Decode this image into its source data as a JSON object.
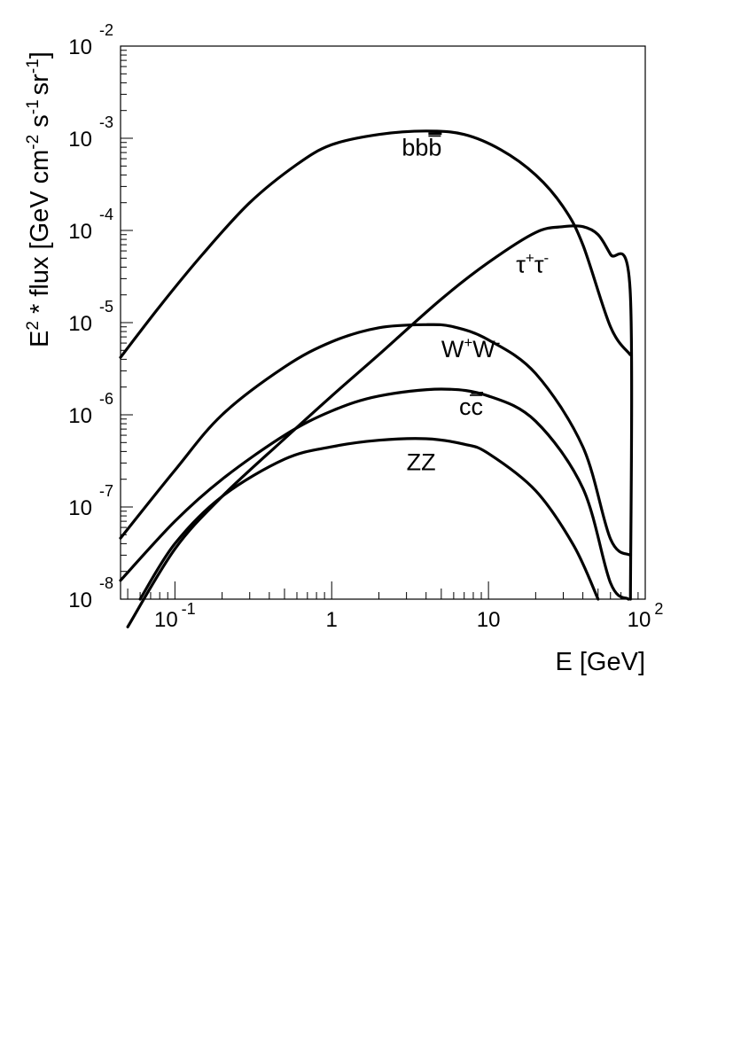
{
  "chart_data": {
    "type": "line",
    "xlabel": "E [GeV]",
    "ylabel_parts": {
      "a": "E",
      "a_sup": "2",
      "b": " * flux [GeV cm",
      "b_sup": "-2",
      "c": " s",
      "c_sup": "-1",
      "d": "sr",
      "d_sup": "-1",
      "e": "]"
    },
    "x_scale": "log",
    "y_scale": "log",
    "xlim": [
      0.045,
      100
    ],
    "ylim": [
      1e-08,
      0.01
    ],
    "x_ticks": [
      {
        "value": 0.1,
        "base": "10",
        "exp": "-1"
      },
      {
        "value": 1,
        "base": "1",
        "exp": ""
      },
      {
        "value": 10,
        "base": "10",
        "exp": ""
      },
      {
        "value": 100,
        "base": "10",
        "exp": "2"
      }
    ],
    "y_ticks": [
      {
        "value": 0.01,
        "base": "10",
        "exp": "-2"
      },
      {
        "value": 0.001,
        "base": "10",
        "exp": "-3"
      },
      {
        "value": 0.0001,
        "base": "10",
        "exp": "-4"
      },
      {
        "value": 1e-05,
        "base": "10",
        "exp": "-5"
      },
      {
        "value": 1e-06,
        "base": "10",
        "exp": "-6"
      },
      {
        "value": 1e-07,
        "base": "10",
        "exp": "-7"
      },
      {
        "value": 1e-08,
        "base": "10",
        "exp": "-8"
      }
    ],
    "series": [
      {
        "name": "bb̄",
        "x": [
          0.045,
          0.08,
          0.15,
          0.3,
          0.6,
          1.0,
          2.0,
          4.0,
          7.0,
          12.0,
          20.0,
          30.0,
          40.0,
          60.0,
          80.0
        ],
        "y": [
          4.2e-06,
          1.5e-05,
          5.5e-05,
          0.0002,
          0.00052,
          0.00085,
          0.0011,
          0.0012,
          0.0011,
          0.00075,
          0.0004,
          0.00018,
          7e-05,
          9e-06,
          4.5e-06
        ]
      },
      {
        "name": "τ⁺τ⁻",
        "x": [
          0.05,
          0.1,
          0.2,
          0.5,
          1.0,
          2.0,
          5.0,
          10.0,
          20.0,
          30.0,
          40.0,
          50.0,
          60.0,
          80.0,
          80.5
        ],
        "y": [
          5e-09,
          3.5e-08,
          1.3e-07,
          5.5e-07,
          1.6e-06,
          4.5e-06,
          1.8e-05,
          4.5e-05,
          9.5e-05,
          0.00011,
          0.00011,
          9e-05,
          5.5e-05,
          2.3e-05,
          1e-08
        ]
      },
      {
        "name": "W⁺W⁻",
        "x": [
          0.045,
          0.1,
          0.2,
          0.5,
          1.0,
          2.0,
          4.0,
          6.0,
          10.0,
          20.0,
          40.0,
          60.0,
          80.0
        ],
        "y": [
          4.6e-08,
          2.5e-07,
          1e-06,
          3.3e-06,
          6.2e-06,
          8.8e-06,
          9.5e-06,
          9e-06,
          6.5e-06,
          2.8e-06,
          4.5e-07,
          4.5e-08,
          3e-08
        ]
      },
      {
        "name": "cc̄",
        "x": [
          0.045,
          0.1,
          0.2,
          0.5,
          1.0,
          2.0,
          5.0,
          10.0,
          20.0,
          40.0,
          60.0,
          78.0
        ],
        "y": [
          1.6e-08,
          7e-08,
          2e-07,
          6e-07,
          1.1e-06,
          1.6e-06,
          1.9e-06,
          1.6e-06,
          8.5e-07,
          1.6e-07,
          1.5e-08,
          1e-08
        ]
      },
      {
        "name": "ZZ",
        "x": [
          0.06,
          0.1,
          0.2,
          0.5,
          1.0,
          2.0,
          4.0,
          7.0,
          10.0,
          20.0,
          35.0,
          50.0
        ],
        "y": [
          1e-08,
          4e-08,
          1.3e-07,
          3.3e-07,
          4.5e-07,
          5.3e-07,
          5.5e-07,
          4.8e-07,
          3.8e-07,
          1.5e-07,
          3.8e-08,
          1e-08
        ]
      }
    ],
    "curve_labels": [
      {
        "series": 0,
        "main": "bb",
        "over": "b",
        "x": 2.8,
        "y": 0.00065
      },
      {
        "series": 1,
        "main": "τ",
        "sup1": "+",
        "main2": "τ",
        "sup2": "-",
        "x": 15.0,
        "y": 3.5e-05
      },
      {
        "series": 2,
        "main": "W",
        "sup1": "+",
        "main2": "W",
        "sup2": "-",
        "x": 5.0,
        "y": 4.2e-06
      },
      {
        "series": 3,
        "main": "c",
        "over": "c",
        "x": 6.5,
        "y": 1e-06
      },
      {
        "series": 4,
        "main": "ZZ",
        "x": 3.0,
        "y": 2.5e-07
      }
    ]
  }
}
